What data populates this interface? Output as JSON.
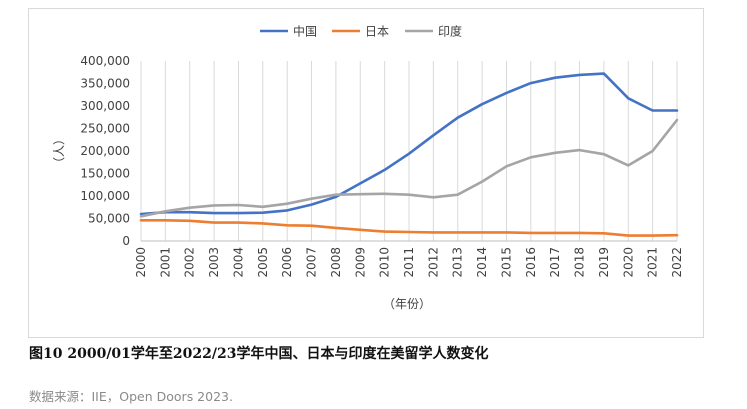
{
  "chart_data": {
    "type": "line",
    "title": "",
    "ylabel": "（人）",
    "xlabel": "（年份）",
    "categories": [
      "2000",
      "2001",
      "2002",
      "2003",
      "2004",
      "2005",
      "2006",
      "2007",
      "2008",
      "2009",
      "2010",
      "2011",
      "2012",
      "2013",
      "2014",
      "2015",
      "2016",
      "2017",
      "2018",
      "2019",
      "2020",
      "2021",
      "2022"
    ],
    "ylim": [
      0,
      400000
    ],
    "yticks": [
      "0",
      "50,000",
      "100,000",
      "150,000",
      "200,000",
      "250,000",
      "300,000",
      "350,000",
      "400,000"
    ],
    "ytick_values": [
      0,
      50000,
      100000,
      150000,
      200000,
      250000,
      300000,
      350000,
      400000
    ],
    "grid": "vertical",
    "legend": "top-center",
    "series": [
      {
        "name": "中国",
        "color": "#4472c4",
        "values": [
          60000,
          64000,
          64000,
          62000,
          62000,
          63000,
          68000,
          81000,
          98000,
          128000,
          158000,
          194000,
          235000,
          274000,
          304000,
          329000,
          351000,
          363000,
          369000,
          372000,
          317000,
          290000,
          290000
        ]
      },
      {
        "name": "日本",
        "color": "#ed7d31",
        "values": [
          46000,
          46000,
          45000,
          41000,
          41000,
          39000,
          35000,
          34000,
          29000,
          25000,
          21000,
          20000,
          19000,
          19000,
          19000,
          19000,
          18000,
          18000,
          18000,
          17000,
          12000,
          12000,
          13000
        ]
      },
      {
        "name": "印度",
        "color": "#a5a5a5",
        "values": [
          55000,
          66000,
          74000,
          79000,
          80000,
          76000,
          83000,
          94000,
          103000,
          104000,
          105000,
          103000,
          97000,
          103000,
          132000,
          166000,
          186000,
          196000,
          202000,
          193000,
          168000,
          200000,
          269000
        ]
      }
    ]
  },
  "caption": "图10 2000/01学年至2022/23学年中国、日本与印度在美留学人数变化",
  "source": "数据来源：IIE，Open Doors 2023."
}
